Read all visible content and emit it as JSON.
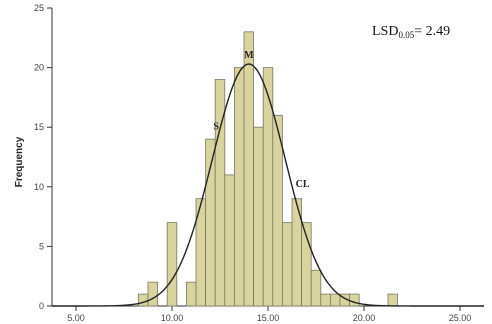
{
  "chart_data": {
    "type": "bar",
    "subtype": "histogram",
    "ylabel": "Frequency",
    "xlabel": "",
    "xlim": [
      3.75,
      26.25
    ],
    "ylim": [
      0,
      25
    ],
    "x_ticks": [
      5,
      10,
      15,
      20,
      25
    ],
    "x_tick_labels": [
      "5.00",
      "10.00",
      "15.00",
      "20.00",
      "25.00"
    ],
    "y_ticks": [
      0,
      5,
      10,
      15,
      20,
      25
    ],
    "y_tick_labels": [
      "0",
      "5",
      "10",
      "15",
      "20",
      "25"
    ],
    "bin_width": 0.5,
    "bins": [
      {
        "x": 8.5,
        "count": 1
      },
      {
        "x": 9.0,
        "count": 2
      },
      {
        "x": 9.5,
        "count": 0
      },
      {
        "x": 10.0,
        "count": 7
      },
      {
        "x": 10.5,
        "count": 0
      },
      {
        "x": 11.0,
        "count": 2
      },
      {
        "x": 11.5,
        "count": 9
      },
      {
        "x": 12.0,
        "count": 14
      },
      {
        "x": 12.5,
        "count": 19
      },
      {
        "x": 13.0,
        "count": 11
      },
      {
        "x": 13.5,
        "count": 20
      },
      {
        "x": 14.0,
        "count": 23
      },
      {
        "x": 14.5,
        "count": 15
      },
      {
        "x": 15.0,
        "count": 20
      },
      {
        "x": 15.5,
        "count": 16
      },
      {
        "x": 16.0,
        "count": 7
      },
      {
        "x": 16.5,
        "count": 9
      },
      {
        "x": 17.0,
        "count": 7
      },
      {
        "x": 17.5,
        "count": 3
      },
      {
        "x": 18.0,
        "count": 1
      },
      {
        "x": 18.5,
        "count": 1
      },
      {
        "x": 19.0,
        "count": 1
      },
      {
        "x": 19.5,
        "count": 1
      },
      {
        "x": 20.0,
        "count": 0
      },
      {
        "x": 20.5,
        "count": 0
      },
      {
        "x": 21.0,
        "count": 0
      },
      {
        "x": 21.5,
        "count": 1
      }
    ],
    "normal_curve": {
      "mean": 14.0,
      "sd": 1.9,
      "peak": 20.3
    },
    "annotations": [
      {
        "text": "M",
        "x": 14.0,
        "y": 20.8
      },
      {
        "text": "S",
        "x": 12.3,
        "y": 14.8
      },
      {
        "text": "CL",
        "x": 16.8,
        "y": 10.0
      }
    ],
    "lsd": {
      "main": "LSD",
      "sub": "0.05",
      "value": "= 2.49"
    },
    "colors": {
      "bar_fill": "#d8d39f",
      "bar_stroke": "#7a7a60",
      "curve": "#222222",
      "axis": "#333333"
    },
    "grid": false,
    "legend": "none"
  }
}
